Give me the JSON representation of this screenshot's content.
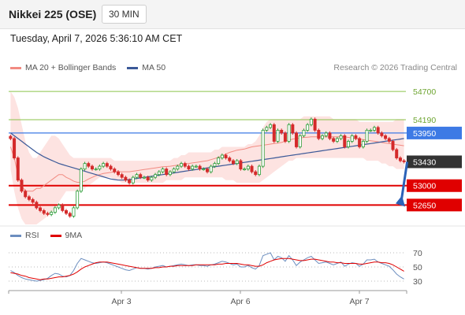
{
  "header": {
    "title": "Nikkei 225 (OSE)",
    "timeframe": "30 MIN"
  },
  "timestamp": "Tuesday, April 7, 2026 5:36:10 AM CET",
  "legend": {
    "bollinger": {
      "label": "MA 20 + Bollinger Bands",
      "color": "#f28b82"
    },
    "ma50": {
      "label": "MA 50",
      "color": "#3b5998"
    }
  },
  "credit": "Research © 2026 Trading Central",
  "chart_data": [
    {
      "type": "line",
      "name": "price",
      "y_range": [
        52300,
        55000
      ],
      "horizontal_levels": [
        {
          "value": 54700,
          "label": "54700",
          "color": "#8bc34a",
          "style": "line-label"
        },
        {
          "value": 54190,
          "label": "54190",
          "color": "#8bc34a",
          "style": "line-label"
        },
        {
          "value": 53950,
          "label": "53950",
          "color": "#3d7ae5",
          "style": "tag"
        },
        {
          "value": 53430,
          "label": "53430",
          "color": "#333333",
          "style": "tag-current"
        },
        {
          "value": 53000,
          "label": "53000",
          "color": "#e00000",
          "style": "tag"
        },
        {
          "value": 52650,
          "label": "52650",
          "color": "#e00000",
          "style": "tag"
        }
      ],
      "x_ticks": [
        "Apr 3",
        "Apr 6",
        "Apr 7"
      ],
      "closes": [
        53850,
        53500,
        53100,
        52900,
        52800,
        52750,
        52700,
        52600,
        52550,
        52500,
        52480,
        52520,
        52600,
        52650,
        52550,
        52500,
        52450,
        52600,
        52900,
        53300,
        53400,
        53350,
        53300,
        53300,
        53350,
        53400,
        53350,
        53300,
        53250,
        53200,
        53150,
        53100,
        53050,
        53150,
        53200,
        53150,
        53150,
        53100,
        53150,
        53200,
        53250,
        53300,
        53200,
        53250,
        53300,
        53350,
        53400,
        53350,
        53300,
        53350,
        53350,
        53300,
        53300,
        53250,
        53350,
        53400,
        53500,
        53550,
        53500,
        53450,
        53400,
        53450,
        53300,
        53300,
        53350,
        53250,
        53200,
        53350,
        54000,
        54050,
        54100,
        53800,
        54000,
        53950,
        53800,
        54100,
        53950,
        53700,
        53900,
        54000,
        54100,
        54200,
        54000,
        53850,
        53900,
        53950,
        53850,
        53800,
        53850,
        53900,
        53700,
        53800,
        53900,
        53850,
        53700,
        53800,
        54000,
        54000,
        54050,
        53950,
        53900,
        53850,
        53800,
        53650,
        53500,
        53450,
        53430
      ],
      "ma20": [
        53700,
        53500,
        53200,
        53000,
        52900,
        52900,
        52900,
        52950,
        52950,
        53000,
        53050,
        53100,
        53150,
        53200,
        53200,
        53150,
        53120,
        53080,
        53060,
        53060,
        53080,
        53120,
        53150,
        53180,
        53200,
        53220,
        53230,
        53240,
        53250,
        53250,
        53250,
        53250,
        53250,
        53260,
        53270,
        53280,
        53290,
        53300,
        53310,
        53320,
        53330,
        53340,
        53345,
        53350,
        53360,
        53370,
        53380,
        53390,
        53400,
        53410,
        53420,
        53430,
        53440,
        53450,
        53470,
        53490,
        53510,
        53540,
        53570,
        53600,
        53620,
        53640,
        53650,
        53660,
        53680,
        53700,
        53710,
        53720,
        53730,
        53740,
        53750,
        53760,
        53770,
        53780,
        53800,
        53820,
        53840,
        53850,
        53860,
        53870,
        53875,
        53880,
        53880,
        53880,
        53880,
        53880,
        53880,
        53880,
        53880,
        53880,
        53880,
        53870,
        53860,
        53850,
        53840,
        53830,
        53820,
        53810,
        53800,
        53790,
        53780,
        53770,
        53760,
        53750,
        53740,
        53730,
        53720
      ],
      "ma50": [
        53950,
        53900,
        53850,
        53800,
        53750,
        53700,
        53650,
        53600,
        53560,
        53520,
        53490,
        53460,
        53430,
        53400,
        53380,
        53360,
        53340,
        53320,
        53300,
        53280,
        53260,
        53240,
        53220,
        53200,
        53180,
        53160,
        53140,
        53120,
        53110,
        53100,
        53100,
        53100,
        53110,
        53120,
        53130,
        53140,
        53150,
        53160,
        53170,
        53180,
        53190,
        53200,
        53210,
        53220,
        53230,
        53240,
        53250,
        53260,
        53270,
        53280,
        53290,
        53300,
        53310,
        53320,
        53330,
        53340,
        53350,
        53360,
        53370,
        53380,
        53390,
        53400,
        53410,
        53420,
        53430,
        53440,
        53450,
        53460,
        53470,
        53480,
        53490,
        53500,
        53510,
        53520,
        53530,
        53540,
        53550,
        53560,
        53570,
        53580,
        53590,
        53600,
        53610,
        53620,
        53630,
        53640,
        53650,
        53660,
        53670,
        53680,
        53690,
        53700,
        53710,
        53720,
        53730,
        53740,
        53750,
        53760,
        53770,
        53780,
        53790,
        53800,
        53810,
        53820,
        53830,
        53840,
        53850
      ],
      "bb_upper": [
        54700,
        54600,
        54400,
        54100,
        53800,
        53600,
        53500,
        53500,
        53600,
        53700,
        53800,
        53900,
        53900,
        53850,
        53750,
        53650,
        53550,
        53500,
        53500,
        53500,
        53500,
        53500,
        53500,
        53500,
        53500,
        53500,
        53500,
        53500,
        53450,
        53450,
        53450,
        53450,
        53450,
        53450,
        53450,
        53450,
        53450,
        53450,
        53450,
        53450,
        53450,
        53450,
        53450,
        53450,
        53500,
        53500,
        53550,
        53550,
        53600,
        53600,
        53600,
        53600,
        53600,
        53600,
        53600,
        53650,
        53650,
        53700,
        53700,
        53700,
        53700,
        53700,
        53700,
        53700,
        53750,
        53750,
        53800,
        53900,
        54050,
        54150,
        54200,
        54200,
        54200,
        54200,
        54200,
        54200,
        54200,
        54200,
        54200,
        54250,
        54250,
        54250,
        54250,
        54250,
        54250,
        54250,
        54250,
        54200,
        54200,
        54200,
        54200,
        54200,
        54200,
        54200,
        54150,
        54150,
        54150,
        54150,
        54150,
        54150,
        54150,
        54150,
        54150,
        54150,
        54200,
        54200,
        54200
      ],
      "bb_lower": [
        53300,
        52900,
        52600,
        52400,
        52300,
        52300,
        52300,
        52300,
        52350,
        52400,
        52450,
        52500,
        52600,
        52700,
        52800,
        52900,
        52900,
        52900,
        52900,
        52900,
        52950,
        53000,
        53050,
        53100,
        53150,
        53150,
        53150,
        53150,
        53100,
        53100,
        53050,
        53050,
        53050,
        53050,
        53050,
        53050,
        53050,
        53050,
        53050,
        53050,
        53050,
        53050,
        53100,
        53100,
        53100,
        53100,
        53100,
        53150,
        53150,
        53150,
        53150,
        53150,
        53150,
        53150,
        53150,
        53150,
        53150,
        53150,
        53100,
        53100,
        53100,
        53050,
        53050,
        53050,
        53050,
        53050,
        53050,
        53050,
        53100,
        53150,
        53200,
        53250,
        53300,
        53350,
        53400,
        53450,
        53450,
        53500,
        53500,
        53500,
        53500,
        53500,
        53500,
        53500,
        53500,
        53500,
        53500,
        53500,
        53500,
        53500,
        53500,
        53500,
        53500,
        53500,
        53500,
        53500,
        53450,
        53450,
        53450,
        53450,
        53400,
        53400,
        53350,
        53350,
        53300,
        53300,
        53300
      ],
      "forecast_arrow": {
        "from": 53430,
        "to": 52650
      }
    },
    {
      "type": "line",
      "name": "rsi",
      "y_range": [
        20,
        80
      ],
      "y_ticks": [
        70,
        50,
        30
      ],
      "legend": [
        {
          "label": "RSI",
          "color": "#6c8ebf"
        },
        {
          "label": "9MA",
          "color": "#e00000"
        }
      ],
      "rsi": [
        45,
        42,
        38,
        35,
        33,
        32,
        31,
        30,
        31,
        32,
        34,
        38,
        41,
        40,
        37,
        36,
        38,
        45,
        55,
        62,
        60,
        58,
        56,
        55,
        56,
        57,
        56,
        54,
        52,
        50,
        48,
        46,
        45,
        47,
        49,
        48,
        48,
        47,
        48,
        50,
        51,
        52,
        50,
        51,
        52,
        53,
        54,
        53,
        52,
        53,
        53,
        52,
        52,
        51,
        53,
        54,
        56,
        58,
        57,
        55,
        53,
        54,
        50,
        50,
        52,
        49,
        47,
        52,
        66,
        68,
        70,
        60,
        65,
        63,
        58,
        66,
        60,
        52,
        57,
        60,
        63,
        65,
        60,
        55,
        56,
        57,
        55,
        53,
        55,
        57,
        51,
        54,
        56,
        55,
        51,
        54,
        60,
        60,
        61,
        57,
        55,
        53,
        51,
        46,
        40,
        36,
        33
      ],
      "ma9": [
        42,
        41,
        40,
        38,
        37,
        35,
        34,
        33,
        32,
        33,
        33,
        34,
        35,
        36,
        36,
        37,
        38,
        40,
        43,
        47,
        50,
        52,
        54,
        56,
        57,
        57,
        57,
        56,
        55,
        54,
        53,
        52,
        51,
        50,
        49,
        48,
        48,
        48,
        48,
        49,
        49,
        50,
        50,
        51,
        51,
        52,
        52,
        52,
        52,
        52,
        53,
        53,
        53,
        53,
        53,
        53,
        54,
        54,
        55,
        55,
        55,
        55,
        54,
        53,
        53,
        52,
        51,
        51,
        53,
        56,
        58,
        60,
        61,
        62,
        62,
        62,
        61,
        60,
        59,
        59,
        60,
        61,
        61,
        60,
        59,
        58,
        57,
        57,
        56,
        56,
        55,
        55,
        55,
        55,
        54,
        54,
        55,
        56,
        57,
        57,
        56,
        56,
        55,
        53,
        50,
        47,
        44
      ]
    }
  ]
}
